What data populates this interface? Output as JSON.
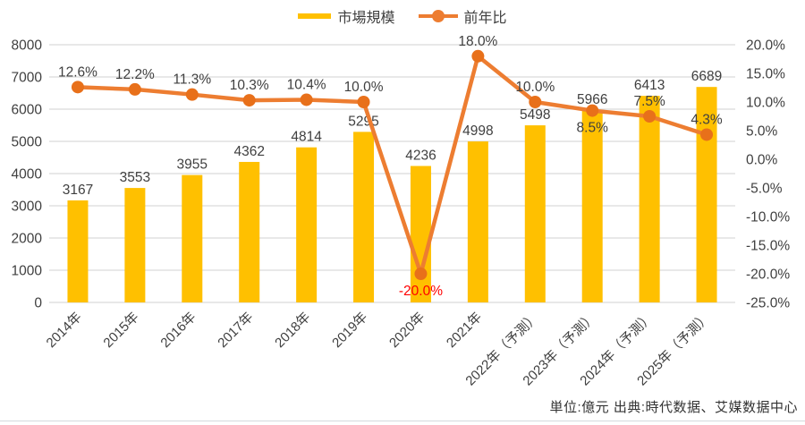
{
  "legend": {
    "items": [
      {
        "label": "市場規模",
        "marker": "bar-swatch-icon"
      },
      {
        "label": "前年比",
        "marker": "line-dot-swatch-icon"
      }
    ]
  },
  "footer": {
    "text": "単位:億元  出典:時代数据、艾媒数据中心"
  },
  "colors": {
    "bar": "#FFC000",
    "line": "#ED7D31",
    "marker": "#E8701A",
    "grid": "#D9D9D9",
    "text": "#3F3F3F",
    "negative_label": "#FF0000",
    "background": "#FFFFFF"
  },
  "chart_data": {
    "type": "bar",
    "subtype": "bar+line combo, dual axis",
    "categories": [
      "2014年",
      "2015年",
      "2016年",
      "2017年",
      "2018年",
      "2019年",
      "2020年",
      "2021年",
      "2022年（予測）",
      "2023年（予測）",
      "2024年（予測）",
      "2025年（予測）"
    ],
    "series": [
      {
        "name": "市場規模",
        "type": "bar",
        "axis": "left",
        "values": [
          3167,
          3553,
          3955,
          4362,
          4814,
          5295,
          4236,
          4998,
          5498,
          5966,
          6413,
          6689
        ]
      },
      {
        "name": "前年比",
        "type": "line",
        "axis": "right",
        "values": [
          12.6,
          12.2,
          11.3,
          10.3,
          10.4,
          10.0,
          -20.0,
          18.0,
          10.0,
          8.5,
          7.5,
          4.3
        ],
        "label_suffix": "%",
        "label_placement": [
          "above",
          "above",
          "above",
          "above",
          "above",
          "above",
          "below",
          "above",
          "above",
          "below",
          "above",
          "above"
        ]
      }
    ],
    "left_axis": {
      "min": 0,
      "max": 8000,
      "step": 1000,
      "ticks": [
        "0",
        "1000",
        "2000",
        "3000",
        "4000",
        "5000",
        "6000",
        "7000",
        "8000"
      ]
    },
    "right_axis": {
      "min": -25,
      "max": 20,
      "step": 5,
      "ticks": [
        "-25.0%",
        "-20.0%",
        "-15.0%",
        "-10.0%",
        "-5.0%",
        "0.0%",
        "5.0%",
        "10.0%",
        "15.0%",
        "20.0%"
      ]
    },
    "gridlines": "horizontal",
    "legend_position": "top",
    "x_label_rotation_deg": -45
  }
}
